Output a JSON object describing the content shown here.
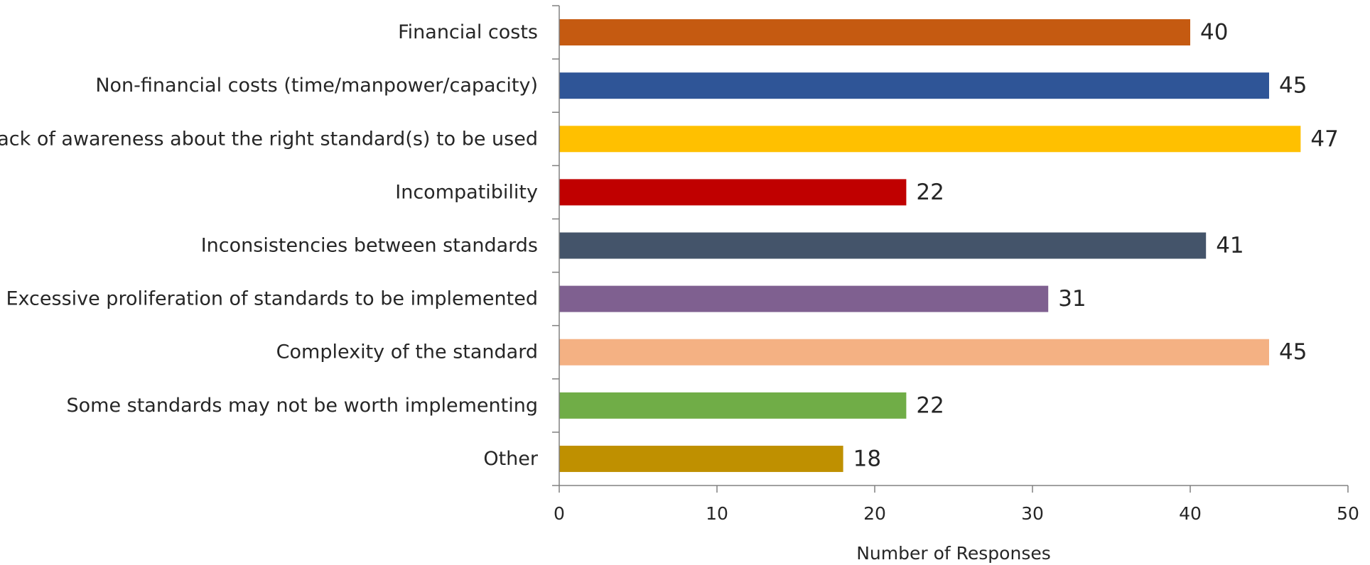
{
  "chart_data": {
    "type": "bar",
    "orientation": "horizontal",
    "categories": [
      "Financial costs",
      "Non-financial costs (time/manpower/capacity)",
      "Lack of awareness about the right standard(s) to be used",
      "Incompatibility",
      "Inconsistencies  between standards",
      "Excessive proliferation of standards to be implemented",
      "Complexity of the standard",
      "Some standards may not be worth  implementing",
      "Other"
    ],
    "values": [
      40,
      45,
      47,
      22,
      41,
      31,
      45,
      22,
      18
    ],
    "colors": [
      "#c55a11",
      "#2f5597",
      "#ffc000",
      "#c00000",
      "#44546a",
      "#7f6090",
      "#f4b183",
      "#70ad47",
      "#bf9000"
    ],
    "xlabel": "Number of Responses",
    "xlim": [
      0,
      50
    ],
    "xticks": [
      0,
      10,
      20,
      30,
      40,
      50
    ],
    "grid": false,
    "data_labels": true
  }
}
